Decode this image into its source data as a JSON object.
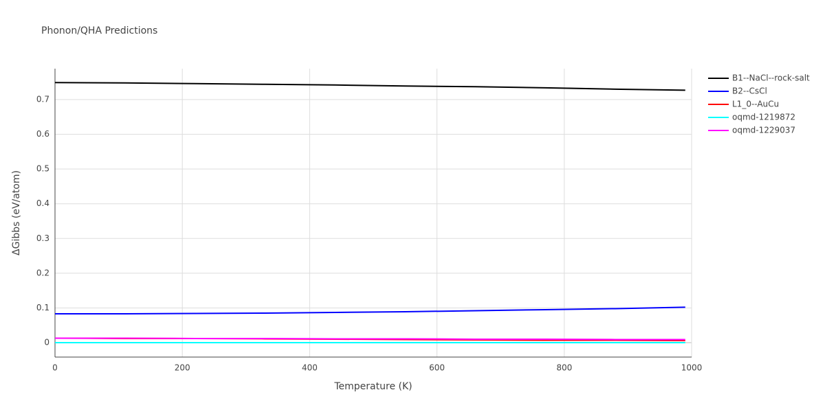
{
  "chart_data": {
    "type": "line",
    "title": "Phonon/QHA Predictions",
    "x_label": "Temperature (K)",
    "y_label": "ΔGibbs (eV/atom)",
    "x": [
      0,
      110,
      220,
      330,
      440,
      550,
      660,
      770,
      880,
      990
    ],
    "series": [
      {
        "name": "B1--NaCl--rock-salt",
        "color": "#000000",
        "values": [
          0.749,
          0.748,
          0.746,
          0.744,
          0.742,
          0.739,
          0.737,
          0.734,
          0.73,
          0.727
        ]
      },
      {
        "name": "B2--CsCl",
        "color": "#0000ff",
        "values": [
          0.083,
          0.083,
          0.084,
          0.085,
          0.087,
          0.089,
          0.092,
          0.095,
          0.098,
          0.102
        ]
      },
      {
        "name": "L1_0--AuCu",
        "color": "#ff0000",
        "values": [
          0.013,
          0.012,
          0.012,
          0.011,
          0.01,
          0.009,
          0.008,
          0.007,
          0.007,
          0.006
        ]
      },
      {
        "name": "oqmd-1219872",
        "color": "#00ffff",
        "values": [
          0,
          0,
          0,
          0,
          0,
          0,
          0,
          0,
          0,
          0
        ]
      },
      {
        "name": "oqmd-1229037",
        "color": "#ff00ff",
        "values": [
          0.013,
          0.013,
          0.012,
          0.012,
          0.011,
          0.011,
          0.01,
          0.01,
          0.009,
          0.009
        ]
      }
    ],
    "xlim": [
      0,
      1000
    ],
    "xticks": [
      0,
      200,
      400,
      600,
      800,
      1000
    ],
    "ylim": [
      -0.0415,
      0.789
    ],
    "yticks": [
      0,
      0.1,
      0.2,
      0.3,
      0.4,
      0.5,
      0.6,
      0.7
    ],
    "grid": true,
    "legend": "outside-right"
  }
}
